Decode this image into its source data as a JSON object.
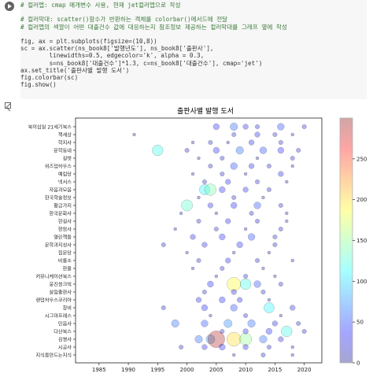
{
  "code_cell": {
    "lines": [
      {
        "text": "# 컬러맵: cmap 매개변수 사용, 현재 jet컬러맵으로 작성",
        "kind": "comment"
      },
      {
        "text": "",
        "kind": "plain"
      },
      {
        "text": "# 컬러막대: scatter()함수가 반환하는 객체를 colorbar()메서드에 전달",
        "kind": "comment"
      },
      {
        "text": "# 컬러맵의 색깔이 어떤 대출건수 값에 대응하는지 참조정보 제공하는 컬러막대를 그래프 옆에 작성",
        "kind": "comment"
      },
      {
        "text": "",
        "kind": "plain"
      },
      {
        "text": "fig, ax = plt.subplots(figsize=(10,8))",
        "kind": "plain"
      },
      {
        "text": "sc = ax.scatter(ns_book8['발행년도'], ns_book8['출판사'],",
        "kind": "plain"
      },
      {
        "text": "        linewidths=0.5, edgecolor='k', alpha = 0.3,",
        "kind": "plain"
      },
      {
        "text": "        s=ns_book8['대출건수']*1.3, c=ns_book8['대출건수'], cmap='jet')",
        "kind": "plain"
      },
      {
        "text": "ax.set_title('출판사별 발행 도서')",
        "kind": "plain"
      },
      {
        "text": "fig.colorbar(sc)",
        "kind": "plain"
      },
      {
        "text": "fig.show()",
        "kind": "plain"
      }
    ]
  },
  "chart_data": {
    "type": "scatter",
    "title": "출판사별 발행 도서",
    "xlabel": "",
    "ylabel": "",
    "xlim": [
      1981,
      2023
    ],
    "x_ticks": [
      1985,
      1990,
      1995,
      2000,
      2005,
      2010,
      2015,
      2020
    ],
    "categories": [
      "북이십일 21세기북스",
      "책세상",
      "학지사",
      "문학동네",
      "길벗",
      "위즈덤하우스",
      "예림당",
      "넥서스",
      "자음과모음",
      "한국학술정보",
      "황금가지",
      "한국문화사",
      "한길사",
      "현암사",
      "열린책들",
      "문학과지성사",
      "집문당",
      "비룡소",
      "한울",
      "커뮤니케이션북스",
      "웅진씽크빅",
      "살림출판사",
      "랜덤하우스코리아",
      "창비",
      "시그마프레스",
      "민음사",
      "다산북스",
      "김영사",
      "시공사",
      "지식을만드는지식"
    ],
    "colorbar": {
      "min": 0,
      "max": 300,
      "ticks": [
        0,
        50,
        100,
        150,
        200,
        250
      ],
      "cmap": "jet"
    },
    "points": [
      {
        "x": 2005,
        "y": "북이십일 21세기북스",
        "v": 40
      },
      {
        "x": 2008,
        "y": "북이십일 21세기북스",
        "v": 60
      },
      {
        "x": 2010,
        "y": "북이십일 21세기북스",
        "v": 30
      },
      {
        "x": 2012,
        "y": "북이십일 21세기북스",
        "v": 20
      },
      {
        "x": 2016,
        "y": "북이십일 21세기북스",
        "v": 50
      },
      {
        "x": 2020,
        "y": "북이십일 21세기북스",
        "v": 20
      },
      {
        "x": 1991,
        "y": "책세상",
        "v": 10
      },
      {
        "x": 2008,
        "y": "책세상",
        "v": 20
      },
      {
        "x": 2012,
        "y": "책세상",
        "v": 30
      },
      {
        "x": 2015,
        "y": "책세상",
        "v": 20
      },
      {
        "x": 2018,
        "y": "책세상",
        "v": 10
      },
      {
        "x": 2001,
        "y": "학지사",
        "v": 10
      },
      {
        "x": 2004,
        "y": "학지사",
        "v": 20
      },
      {
        "x": 2007,
        "y": "학지사",
        "v": 10
      },
      {
        "x": 2011,
        "y": "학지사",
        "v": 30
      },
      {
        "x": 2016,
        "y": "학지사",
        "v": 20
      },
      {
        "x": 1995,
        "y": "문학동네",
        "v": 120
      },
      {
        "x": 2000,
        "y": "문학동네",
        "v": 20
      },
      {
        "x": 2005,
        "y": "문학동네",
        "v": 40
      },
      {
        "x": 2009,
        "y": "문학동네",
        "v": 60
      },
      {
        "x": 2013,
        "y": "문학동네",
        "v": 50
      },
      {
        "x": 2016,
        "y": "문학동네",
        "v": 40
      },
      {
        "x": 2019,
        "y": "문학동네",
        "v": 20
      },
      {
        "x": 2002,
        "y": "길벗",
        "v": 10
      },
      {
        "x": 2006,
        "y": "길벗",
        "v": 20
      },
      {
        "x": 2012,
        "y": "길벗",
        "v": 10
      },
      {
        "x": 2018,
        "y": "길벗",
        "v": 20
      },
      {
        "x": 2004,
        "y": "위즈덤하우스",
        "v": 20
      },
      {
        "x": 2008,
        "y": "위즈덤하우스",
        "v": 50
      },
      {
        "x": 2011,
        "y": "위즈덤하우스",
        "v": 30
      },
      {
        "x": 2014,
        "y": "위즈덤하우스",
        "v": 20
      },
      {
        "x": 2018,
        "y": "위즈덤하우스",
        "v": 10
      },
      {
        "x": 2001,
        "y": "예림당",
        "v": 10
      },
      {
        "x": 2006,
        "y": "예림당",
        "v": 20
      },
      {
        "x": 2010,
        "y": "예림당",
        "v": 10
      },
      {
        "x": 2016,
        "y": "예림당",
        "v": 30
      },
      {
        "x": 2003,
        "y": "넥서스",
        "v": 20
      },
      {
        "x": 2007,
        "y": "넥서스",
        "v": 30
      },
      {
        "x": 2012,
        "y": "넥서스",
        "v": 20
      },
      {
        "x": 2017,
        "y": "넥서스",
        "v": 10
      },
      {
        "x": 2003,
        "y": "자음과모음",
        "v": 110
      },
      {
        "x": 2004,
        "y": "자음과모음",
        "v": 140
      },
      {
        "x": 2006,
        "y": "자음과모음",
        "v": 40
      },
      {
        "x": 2010,
        "y": "자음과모음",
        "v": 30
      },
      {
        "x": 2014,
        "y": "자음과모음",
        "v": 20
      },
      {
        "x": 2002,
        "y": "한국학술정보",
        "v": 10
      },
      {
        "x": 2008,
        "y": "한국학술정보",
        "v": 20
      },
      {
        "x": 2013,
        "y": "한국학술정보",
        "v": 10
      },
      {
        "x": 2000,
        "y": "황금가지",
        "v": 130
      },
      {
        "x": 2004,
        "y": "황금가지",
        "v": 30
      },
      {
        "x": 2008,
        "y": "황금가지",
        "v": 40
      },
      {
        "x": 2012,
        "y": "황금가지",
        "v": 50
      },
      {
        "x": 2016,
        "y": "황금가지",
        "v": 20
      },
      {
        "x": 1999,
        "y": "한국문화사",
        "v": 10
      },
      {
        "x": 2005,
        "y": "한국문화사",
        "v": 10
      },
      {
        "x": 2011,
        "y": "한국문화사",
        "v": 20
      },
      {
        "x": 2017,
        "y": "한국문화사",
        "v": 10
      },
      {
        "x": 2002,
        "y": "한길사",
        "v": 20
      },
      {
        "x": 2007,
        "y": "한길사",
        "v": 30
      },
      {
        "x": 2012,
        "y": "한길사",
        "v": 20
      },
      {
        "x": 2017,
        "y": "한길사",
        "v": 10
      },
      {
        "x": 1998,
        "y": "현암사",
        "v": 10
      },
      {
        "x": 2005,
        "y": "현암사",
        "v": 20
      },
      {
        "x": 2010,
        "y": "현암사",
        "v": 10
      },
      {
        "x": 2016,
        "y": "현암사",
        "v": 20
      },
      {
        "x": 2001,
        "y": "열린책들",
        "v": 30
      },
      {
        "x": 2006,
        "y": "열린책들",
        "v": 40
      },
      {
        "x": 2011,
        "y": "열린책들",
        "v": 50
      },
      {
        "x": 2015,
        "y": "열린책들",
        "v": 20
      },
      {
        "x": 1996,
        "y": "문학과지성사",
        "v": 20
      },
      {
        "x": 2003,
        "y": "문학과지성사",
        "v": 30
      },
      {
        "x": 2009,
        "y": "문학과지성사",
        "v": 40
      },
      {
        "x": 2015,
        "y": "문학과지성사",
        "v": 20
      },
      {
        "x": 2000,
        "y": "집문당",
        "v": 10
      },
      {
        "x": 2008,
        "y": "집문당",
        "v": 10
      },
      {
        "x": 2014,
        "y": "집문당",
        "v": 10
      },
      {
        "x": 2002,
        "y": "비룡소",
        "v": 20
      },
      {
        "x": 2007,
        "y": "비룡소",
        "v": 30
      },
      {
        "x": 2012,
        "y": "비룡소",
        "v": 20
      },
      {
        "x": 2018,
        "y": "비룡소",
        "v": 10
      },
      {
        "x": 2001,
        "y": "한울",
        "v": 10
      },
      {
        "x": 2006,
        "y": "한울",
        "v": 20
      },
      {
        "x": 2013,
        "y": "한울",
        "v": 10
      },
      {
        "x": 2005,
        "y": "커뮤니케이션북스",
        "v": 10
      },
      {
        "x": 2010,
        "y": "커뮤니케이션북스",
        "v": 20
      },
      {
        "x": 2015,
        "y": "커뮤니케이션북스",
        "v": 10
      },
      {
        "x": 2004,
        "y": "웅진씽크빅",
        "v": 40
      },
      {
        "x": 2008,
        "y": "웅진씽크빅",
        "v": 190
      },
      {
        "x": 2010,
        "y": "웅진씽크빅",
        "v": 120
      },
      {
        "x": 2012,
        "y": "웅진씽크빅",
        "v": 50
      },
      {
        "x": 2016,
        "y": "웅진씽크빅",
        "v": 20
      },
      {
        "x": 2003,
        "y": "살림출판사",
        "v": 20
      },
      {
        "x": 2008,
        "y": "살림출판사",
        "v": 30
      },
      {
        "x": 2013,
        "y": "살림출판사",
        "v": 20
      },
      {
        "x": 2002,
        "y": "랜덤하우스코리아",
        "v": 30
      },
      {
        "x": 2006,
        "y": "랜덤하우스코리아",
        "v": 40
      },
      {
        "x": 2009,
        "y": "랜덤하우스코리아",
        "v": 30
      },
      {
        "x": 2014,
        "y": "랜덤하우스코리아",
        "v": 10
      },
      {
        "x": 1996,
        "y": "창비",
        "v": 20
      },
      {
        "x": 2003,
        "y": "창비",
        "v": 40
      },
      {
        "x": 2008,
        "y": "창비",
        "v": 50
      },
      {
        "x": 2014,
        "y": "창비",
        "v": 110
      },
      {
        "x": 2018,
        "y": "창비",
        "v": 30
      },
      {
        "x": 2004,
        "y": "시그마프레스",
        "v": 10
      },
      {
        "x": 2010,
        "y": "시그마프레스",
        "v": 20
      },
      {
        "x": 2016,
        "y": "시그마프레스",
        "v": 10
      },
      {
        "x": 1998,
        "y": "민음사",
        "v": 60
      },
      {
        "x": 2003,
        "y": "민음사",
        "v": 50
      },
      {
        "x": 2007,
        "y": "민음사",
        "v": 70
      },
      {
        "x": 2011,
        "y": "민음사",
        "v": 60
      },
      {
        "x": 2015,
        "y": "민음사",
        "v": 30
      },
      {
        "x": 2019,
        "y": "민음사",
        "v": 20
      },
      {
        "x": 2006,
        "y": "다산북스",
        "v": 20
      },
      {
        "x": 2010,
        "y": "다산북스",
        "v": 30
      },
      {
        "x": 2014,
        "y": "다산북스",
        "v": 40
      },
      {
        "x": 2017,
        "y": "다산북스",
        "v": 120
      },
      {
        "x": 2020,
        "y": "다산북스",
        "v": 20
      },
      {
        "x": 2002,
        "y": "김영사",
        "v": 60
      },
      {
        "x": 2004,
        "y": "김영사",
        "v": 80
      },
      {
        "x": 2005,
        "y": "김영사",
        "v": 290
      },
      {
        "x": 2008,
        "y": "김영사",
        "v": 200
      },
      {
        "x": 2010,
        "y": "김영사",
        "v": 150
      },
      {
        "x": 2013,
        "y": "김영사",
        "v": 60
      },
      {
        "x": 2016,
        "y": "김영사",
        "v": 30
      },
      {
        "x": 1999,
        "y": "시공사",
        "v": 20
      },
      {
        "x": 2003,
        "y": "시공사",
        "v": 30
      },
      {
        "x": 2006,
        "y": "시공사",
        "v": 40
      },
      {
        "x": 2010,
        "y": "시공사",
        "v": 30
      },
      {
        "x": 2014,
        "y": "시공사",
        "v": 20
      },
      {
        "x": 2018,
        "y": "시공사",
        "v": 10
      },
      {
        "x": 2008,
        "y": "지식을만드는지식",
        "v": 10
      },
      {
        "x": 2013,
        "y": "지식을만드는지식",
        "v": 20
      },
      {
        "x": 2018,
        "y": "지식을만드는지식",
        "v": 10
      }
    ]
  }
}
